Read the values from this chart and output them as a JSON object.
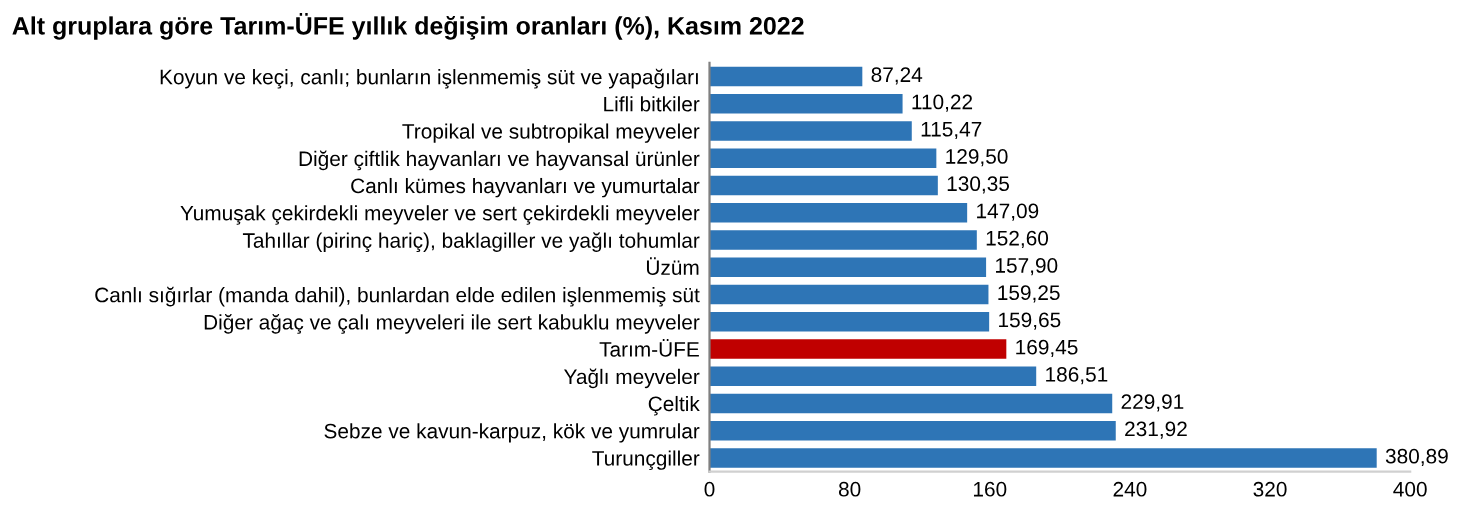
{
  "chart_data": {
    "type": "bar",
    "orientation": "horizontal",
    "title": "Alt gruplara göre Tarım-ÜFE yıllık değişim oranları (%), Kasım 2022",
    "categories": [
      "Koyun ve keçi, canlı; bunların işlenmemiş süt ve yapağıları",
      "Lifli bitkiler",
      "Tropikal ve subtropikal meyveler",
      "Diğer çiftlik hayvanları ve hayvansal ürünler",
      "Canlı kümes hayvanları ve yumurtalar",
      "Yumuşak çekirdekli meyveler ve sert çekirdekli meyveler",
      "Tahıllar (pirinç hariç), baklagiller ve yağlı tohumlar",
      "Üzüm",
      "Canlı sığırlar (manda dahil), bunlardan elde edilen işlenmemiş süt",
      "Diğer ağaç ve çalı meyveleri ile sert kabuklu meyveler",
      "Tarım-ÜFE",
      "Yağlı meyveler",
      "Çeltik",
      "Sebze ve kavun-karpuz, kök ve yumrular",
      "Turunçgiller"
    ],
    "values": [
      87.24,
      110.22,
      115.47,
      129.5,
      130.35,
      147.09,
      152.6,
      157.9,
      159.25,
      159.65,
      169.45,
      186.51,
      229.91,
      231.92,
      380.89
    ],
    "value_labels": [
      "87,24",
      "110,22",
      "115,47",
      "129,50",
      "130,35",
      "147,09",
      "152,60",
      "157,90",
      "159,25",
      "159,65",
      "169,45",
      "186,51",
      "229,91",
      "231,92",
      "380,89"
    ],
    "colors": [
      "#2e75b6",
      "#2e75b6",
      "#2e75b6",
      "#2e75b6",
      "#2e75b6",
      "#2e75b6",
      "#2e75b6",
      "#2e75b6",
      "#2e75b6",
      "#2e75b6",
      "#c00000",
      "#2e75b6",
      "#2e75b6",
      "#2e75b6",
      "#2e75b6"
    ],
    "xlim": [
      0,
      400
    ],
    "xticks": [
      0,
      80,
      160,
      240,
      320,
      400
    ],
    "grid": false,
    "legend": false
  }
}
